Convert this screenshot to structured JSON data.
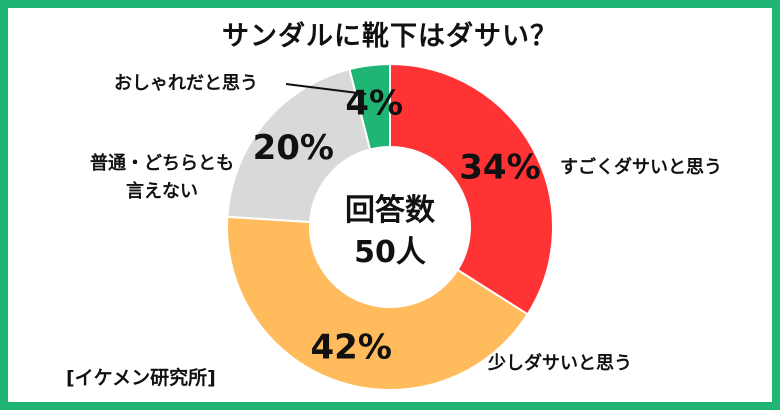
{
  "chart_data": {
    "type": "pie",
    "title": "サンダルに靴下はダサい？",
    "center_label": [
      "回答数",
      "50人"
    ],
    "categories": [
      "すごくダサいと思う",
      "少しダサいと思う",
      "普通・どちらとも言えない",
      "おしゃれだと思う"
    ],
    "category_lines": [
      [
        "すごくダサいと思う"
      ],
      [
        "少しダサいと思う"
      ],
      [
        "普通・どちらとも",
        "言えない"
      ],
      [
        "おしゃれだと思う"
      ]
    ],
    "values": [
      34,
      42,
      20,
      4
    ],
    "value_labels": [
      "34%",
      "42%",
      "20%",
      "4%"
    ],
    "colors": [
      "#ff3333",
      "#ffbb5c",
      "#d9d9d9",
      "#1fb574"
    ],
    "unit": "%"
  },
  "source": "[イケメン研究所]",
  "frame_color": "#1fb574"
}
